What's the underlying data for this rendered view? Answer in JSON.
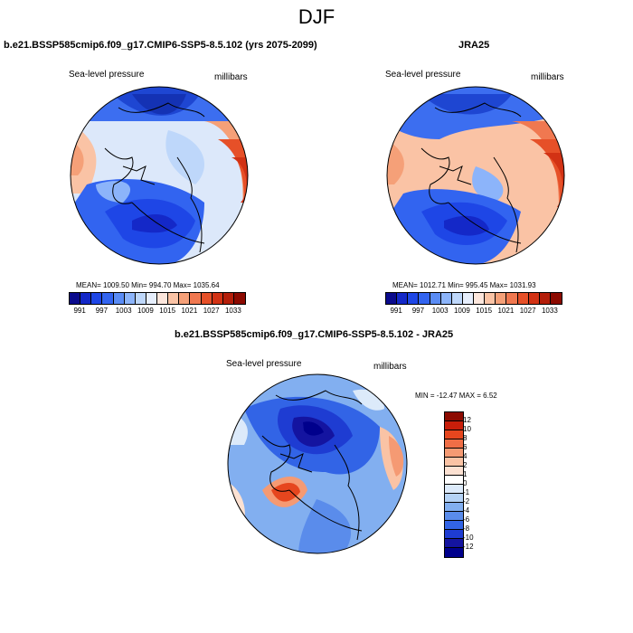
{
  "figure": {
    "season": "DJF"
  },
  "panel_model": {
    "title": "b.e21.BSSP585cmip6.f09_g17.CMIP6-SSP5-8.5.102 (yrs 2075-2099)",
    "field": "Sea-level pressure",
    "units": "millibars",
    "stats": "MEAN= 1009.50  Min= 994.70  Max= 1035.64"
  },
  "panel_obs": {
    "title": "JRA25",
    "field": "Sea-level pressure",
    "units": "millibars",
    "stats": "MEAN= 1012.71  Min= 995.45  Max= 1031.93"
  },
  "panel_diff": {
    "title": "b.e21.BSSP585cmip6.f09_g17.CMIP6-SSP5-8.5.102 - JRA25",
    "field": "Sea-level pressure",
    "units": "millibars",
    "stats": "MIN = -12.47 MAX =   6.52"
  },
  "colorbar_abs": {
    "labels": [
      "991",
      "997",
      "1003",
      "1009",
      "1015",
      "1021",
      "1027",
      "1033"
    ],
    "colors": [
      "#0a0a8c",
      "#1428c8",
      "#1e46e6",
      "#3264f0",
      "#5a8cf5",
      "#8cb4fa",
      "#bed7fa",
      "#e6eefc",
      "#fce6dc",
      "#fac3a5",
      "#f5a078",
      "#f07850",
      "#e65028",
      "#d23214",
      "#b41e0a",
      "#8c0a00"
    ]
  },
  "colorbar_diff": {
    "labels": [
      "12",
      "10",
      "8",
      "6",
      "4",
      "2",
      "1",
      "0",
      "-1",
      "-2",
      "-4",
      "-6",
      "-8",
      "-10",
      "-12"
    ],
    "colors": [
      "#8c0a00",
      "#c81e0a",
      "#e6461e",
      "#f06e46",
      "#f59a73",
      "#fac3a5",
      "#fce1d2",
      "#ffffff",
      "#dceafa",
      "#b4d2f5",
      "#82aff0",
      "#5a8ceb",
      "#3264e6",
      "#1e3cd2",
      "#1414a0",
      "#00008c"
    ]
  }
}
